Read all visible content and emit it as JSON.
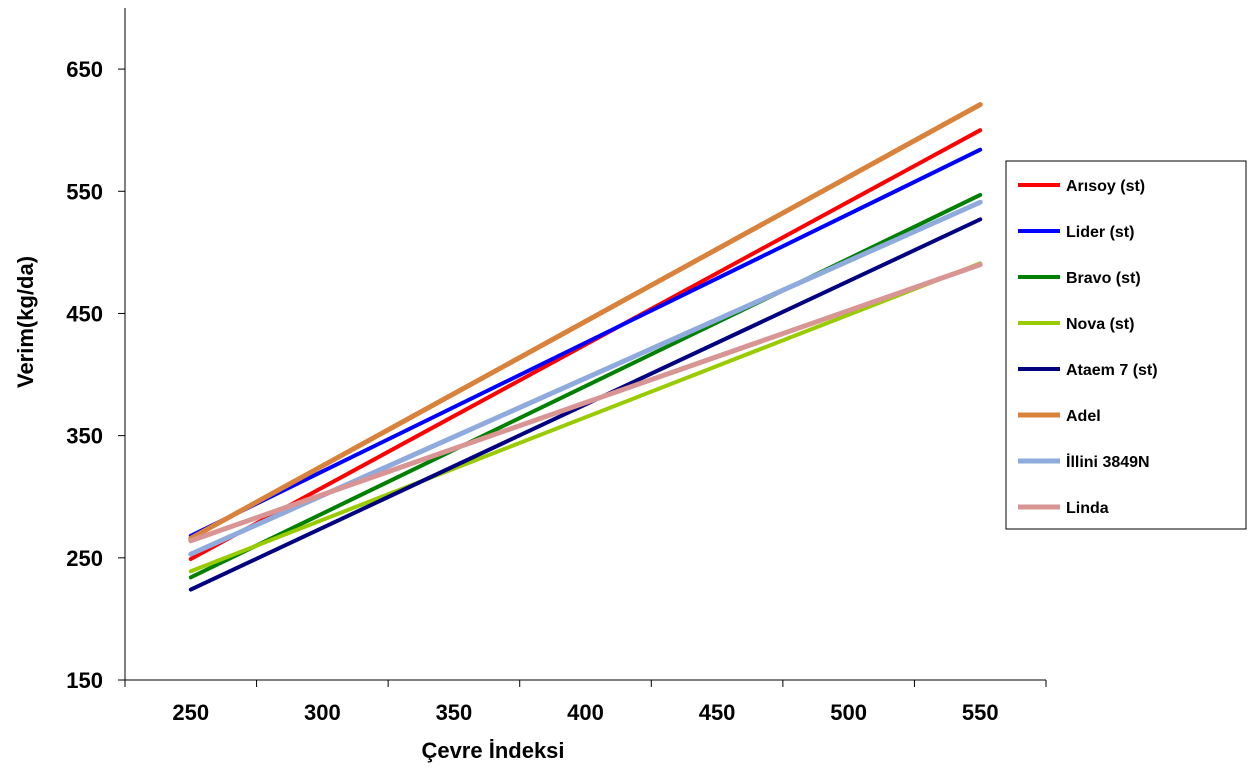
{
  "chart_data": {
    "type": "line",
    "title": "",
    "xlabel": "Çevre İndeksi",
    "ylabel": "Verim(kg/da)",
    "x": [
      250,
      550
    ],
    "xlim": [
      225,
      575
    ],
    "ylim": [
      150,
      700
    ],
    "xticks": [
      250,
      300,
      350,
      400,
      450,
      500,
      550
    ],
    "yticks": [
      150,
      250,
      350,
      450,
      550,
      650
    ],
    "grid": false,
    "legend_position": "right",
    "series": [
      {
        "name": "Arısoy (st)",
        "color": "#ff0000",
        "values": [
          249,
          600
        ]
      },
      {
        "name": "Lider (st)",
        "color": "#0000ff",
        "values": [
          268,
          584
        ]
      },
      {
        "name": "Bravo (st)",
        "color": "#008000",
        "values": [
          234,
          547
        ]
      },
      {
        "name": "Nova (st)",
        "color": "#99cc00",
        "values": [
          239,
          491
        ]
      },
      {
        "name": "Ataem 7 (st)",
        "color": "#000080",
        "values": [
          224,
          527
        ]
      },
      {
        "name": "Adel",
        "color": "#d9823b",
        "values": [
          266,
          621
        ]
      },
      {
        "name": "İllini 3849N",
        "color": "#8faadc",
        "values": [
          253,
          541
        ]
      },
      {
        "name": "Linda",
        "color": "#d99594",
        "values": [
          264,
          490
        ]
      }
    ]
  }
}
